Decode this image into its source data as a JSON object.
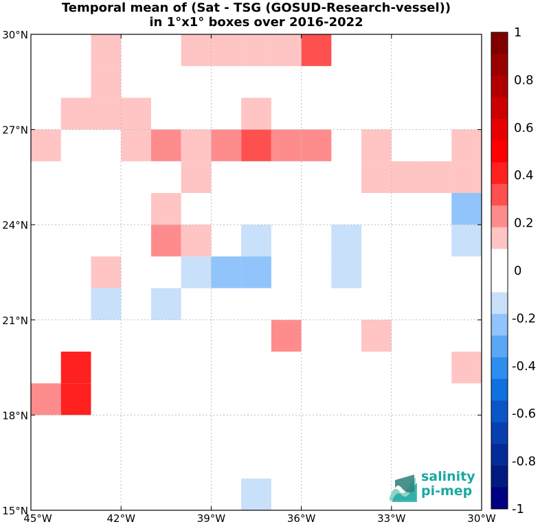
{
  "title": {
    "line1": "Temporal mean of (Sat - TSG (GOSUD-Research-vessel))",
    "line2": "in 1°x1° boxes over 2016-2022"
  },
  "lat_ticks": [
    "30°N",
    "27°N",
    "24°N",
    "21°N",
    "18°N",
    "15°N"
  ],
  "lon_ticks": [
    "45°W",
    "42°W",
    "39°W",
    "36°W",
    "33°W",
    "30°W"
  ],
  "colorbar": {
    "labels": [
      "1",
      "0.8",
      "0.6",
      "0.4",
      "0.2",
      "0",
      "-0.2",
      "-0.4",
      "-0.6",
      "-0.8",
      "-1"
    ],
    "colors": [
      "#800000",
      "#990000",
      "#b20000",
      "#cc0000",
      "#e60000",
      "#ff0000",
      "#ff2020",
      "#ff5050",
      "#ff8c8c",
      "#ffc4c4",
      "#ffffff",
      "#ffffff",
      "#c8e0fa",
      "#90c4fa",
      "#5aa8f5",
      "#2d8ef0",
      "#1070e0",
      "#0a55c8",
      "#0640b0",
      "#032c98",
      "#011a80",
      "#000080"
    ]
  },
  "logo": {
    "line1": "salinity",
    "line2": "pi-mep"
  },
  "chart_data": {
    "type": "heatmap",
    "title": "Temporal mean of (Sat - TSG (GOSUD-Research-vessel)) in 1°x1° boxes over 2016-2022",
    "lon_range": [
      -45,
      -30
    ],
    "lat_range": [
      15,
      30
    ],
    "colorbar_range": [
      -1,
      1
    ],
    "grid": true,
    "cells": [
      {
        "lon": -43,
        "lat": 29,
        "value": 0.15
      },
      {
        "lon": -40,
        "lat": 29,
        "value": 0.15
      },
      {
        "lon": -39,
        "lat": 29,
        "value": 0.15
      },
      {
        "lon": -38,
        "lat": 29,
        "value": 0.15
      },
      {
        "lon": -37,
        "lat": 29,
        "value": 0.15
      },
      {
        "lon": -36,
        "lat": 29,
        "value": 0.35
      },
      {
        "lon": -43,
        "lat": 28,
        "value": 0.15
      },
      {
        "lon": -43,
        "lat": 27,
        "value": 0.15
      },
      {
        "lon": -44,
        "lat": 27,
        "value": 0.15
      },
      {
        "lon": -42,
        "lat": 27,
        "value": 0.15
      },
      {
        "lon": -38,
        "lat": 27,
        "value": 0.15
      },
      {
        "lon": -45,
        "lat": 26,
        "value": 0.15
      },
      {
        "lon": -42,
        "lat": 26,
        "value": 0.15
      },
      {
        "lon": -41,
        "lat": 26,
        "value": 0.25
      },
      {
        "lon": -40,
        "lat": 26,
        "value": 0.15
      },
      {
        "lon": -39,
        "lat": 26,
        "value": 0.25
      },
      {
        "lon": -38,
        "lat": 26,
        "value": 0.35
      },
      {
        "lon": -37,
        "lat": 26,
        "value": 0.25
      },
      {
        "lon": -36,
        "lat": 26,
        "value": 0.25
      },
      {
        "lon": -34,
        "lat": 26,
        "value": 0.15
      },
      {
        "lon": -31,
        "lat": 26,
        "value": 0.15
      },
      {
        "lon": -40,
        "lat": 25,
        "value": 0.15
      },
      {
        "lon": -34,
        "lat": 25,
        "value": 0.15
      },
      {
        "lon": -33,
        "lat": 25,
        "value": 0.15
      },
      {
        "lon": -32,
        "lat": 25,
        "value": 0.15
      },
      {
        "lon": -31,
        "lat": 25,
        "value": 0.15
      },
      {
        "lon": -41,
        "lat": 24,
        "value": 0.15
      },
      {
        "lon": -31,
        "lat": 24,
        "value": -0.25
      },
      {
        "lon": -41,
        "lat": 23,
        "value": 0.25
      },
      {
        "lon": -40,
        "lat": 23,
        "value": 0.15
      },
      {
        "lon": -38,
        "lat": 23,
        "value": -0.15
      },
      {
        "lon": -35,
        "lat": 23,
        "value": -0.15
      },
      {
        "lon": -31,
        "lat": 23,
        "value": -0.15
      },
      {
        "lon": -43,
        "lat": 22,
        "value": 0.15
      },
      {
        "lon": -40,
        "lat": 22,
        "value": -0.15
      },
      {
        "lon": -39,
        "lat": 22,
        "value": -0.25
      },
      {
        "lon": -38,
        "lat": 22,
        "value": -0.25
      },
      {
        "lon": -35,
        "lat": 22,
        "value": -0.15
      },
      {
        "lon": -43,
        "lat": 21,
        "value": -0.15
      },
      {
        "lon": -41,
        "lat": 21,
        "value": -0.15
      },
      {
        "lon": -37,
        "lat": 20,
        "value": 0.25
      },
      {
        "lon": -34,
        "lat": 20,
        "value": 0.15
      },
      {
        "lon": -31,
        "lat": 19,
        "value": 0.15
      },
      {
        "lon": -44,
        "lat": 19,
        "value": 0.45
      },
      {
        "lon": -45,
        "lat": 18,
        "value": 0.25
      },
      {
        "lon": -44,
        "lat": 18,
        "value": 0.45
      },
      {
        "lon": -38,
        "lat": 15,
        "value": -0.15
      }
    ]
  }
}
